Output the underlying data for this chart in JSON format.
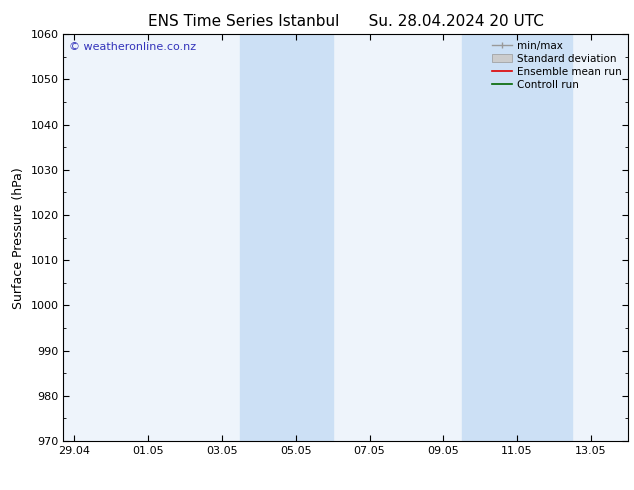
{
  "title": "ENS Time Series Istanbul",
  "title2": "Su. 28.04.2024 20 UTC",
  "ylabel": "Surface Pressure (hPa)",
  "ylim": [
    970,
    1060
  ],
  "yticks": [
    970,
    980,
    990,
    1000,
    1010,
    1020,
    1030,
    1040,
    1050,
    1060
  ],
  "xlabels": [
    "29.04",
    "01.05",
    "03.05",
    "05.05",
    "07.05",
    "09.05",
    "11.05",
    "13.05"
  ],
  "x_positions": [
    0,
    2,
    4,
    6,
    8,
    10,
    12,
    14
  ],
  "xlim": [
    -0.3,
    15.0
  ],
  "shaded_bands": [
    {
      "x_start": 4.5,
      "x_end": 7.0
    },
    {
      "x_start": 10.5,
      "x_end": 13.5
    }
  ],
  "watermark": "© weatheronline.co.nz",
  "watermark_color": "#3333bb",
  "background_color": "#ffffff",
  "plot_bg_color": "#eef4fb",
  "band_color": "#cce0f5",
  "title_fontsize": 11,
  "axis_label_fontsize": 9,
  "tick_fontsize": 8,
  "legend_fontsize": 7.5,
  "watermark_fontsize": 8
}
